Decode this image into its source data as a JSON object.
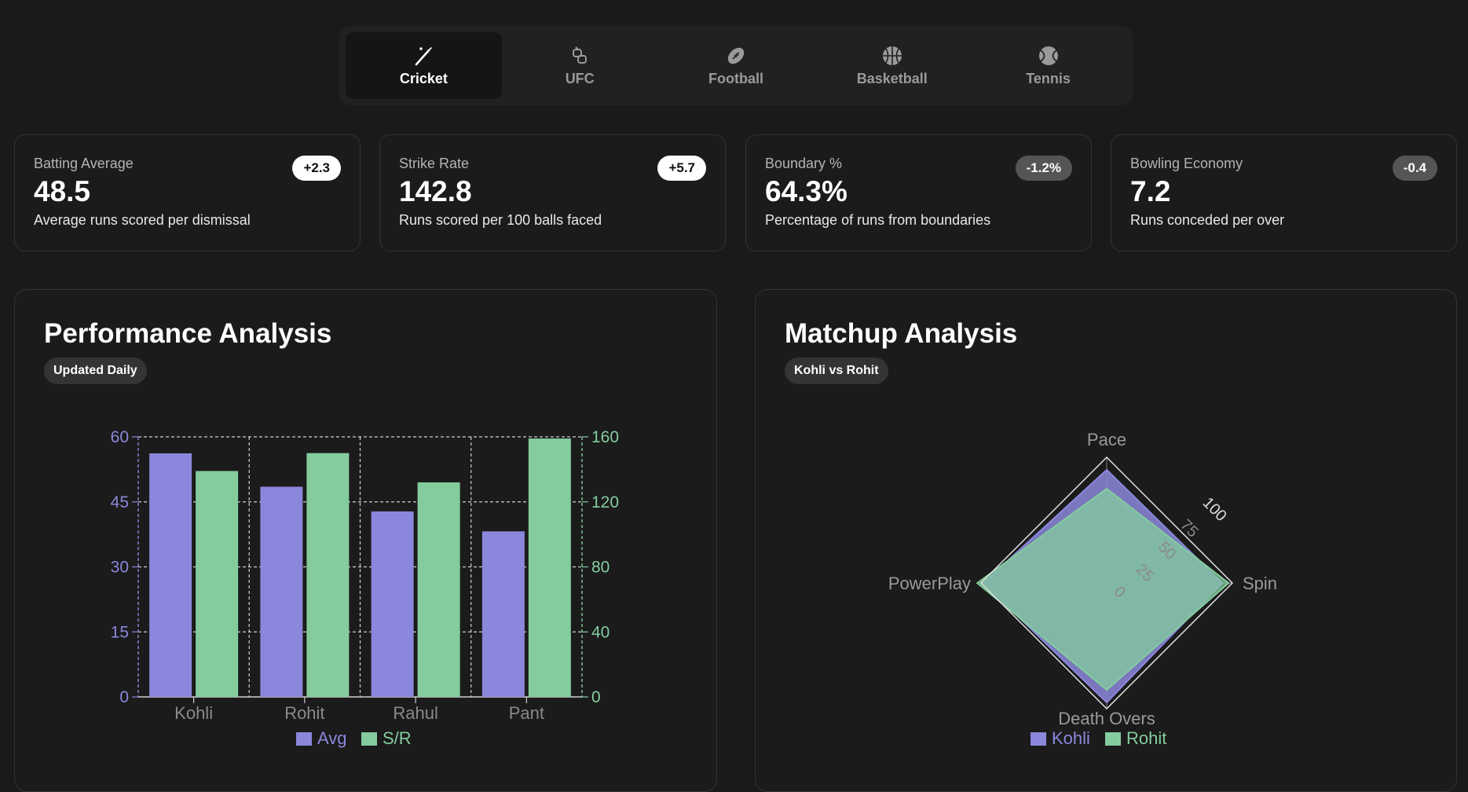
{
  "tabs": [
    {
      "label": "Cricket",
      "icon": "cricket-bat-icon",
      "active": true
    },
    {
      "label": "UFC",
      "icon": "ufc-glove-icon",
      "active": false
    },
    {
      "label": "Football",
      "icon": "football-icon",
      "active": false
    },
    {
      "label": "Basketball",
      "icon": "basketball-icon",
      "active": false
    },
    {
      "label": "Tennis",
      "icon": "tennis-ball-icon",
      "active": false
    }
  ],
  "stats": [
    {
      "label": "Batting Average",
      "value": "48.5",
      "desc": "Average runs scored per dismissal",
      "change": "+2.3"
    },
    {
      "label": "Strike Rate",
      "value": "142.8",
      "desc": "Runs scored per 100 balls faced",
      "change": "+5.7"
    },
    {
      "label": "Boundary %",
      "value": "64.3%",
      "desc": "Percentage of runs from boundaries",
      "change": "-1.2%"
    },
    {
      "label": "Bowling Economy",
      "value": "7.2",
      "desc": "Runs conceded per over",
      "change": "-0.4"
    }
  ],
  "performance": {
    "title": "Performance Analysis",
    "pill": "Updated Daily"
  },
  "matchup": {
    "title": "Matchup Analysis",
    "pill": "Kohli vs Rohit"
  },
  "colors": {
    "avg": "#8b87dc",
    "sr": "#84cc9e",
    "kohli": "#8b87dc",
    "rohit": "#84cc9e"
  },
  "chart_data": [
    {
      "type": "bar",
      "categories": [
        "Kohli",
        "Rohit",
        "Rahul",
        "Pant"
      ],
      "series": [
        {
          "name": "Avg",
          "values": [
            56.2,
            48.5,
            42.8,
            38.2
          ],
          "axis": "left"
        },
        {
          "name": "S/R",
          "values": [
            139,
            150,
            132,
            159
          ],
          "axis": "right"
        }
      ],
      "y_left": {
        "ticks": [
          "0",
          "15",
          "30",
          "45",
          "60"
        ],
        "ylim": [
          0,
          60
        ]
      },
      "y_right": {
        "ticks": [
          "0",
          "40",
          "80",
          "120",
          "160"
        ],
        "ylim": [
          0,
          160
        ]
      },
      "grid": true,
      "legend": "bottom"
    },
    {
      "type": "radar",
      "axes": [
        "Pace",
        "Spin",
        "Death Overs",
        "PowerPlay"
      ],
      "ticks": [
        "0",
        "25",
        "50",
        "75",
        "100"
      ],
      "rlim": [
        0,
        100
      ],
      "series": [
        {
          "name": "Kohli",
          "values": [
            90,
            92,
            95,
            98
          ]
        },
        {
          "name": "Rohit",
          "values": [
            75,
            97,
            85,
            103
          ]
        }
      ],
      "legend": "bottom"
    }
  ]
}
